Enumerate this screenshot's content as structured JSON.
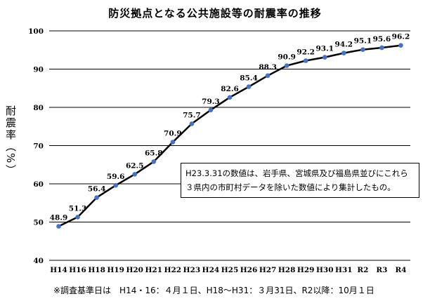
{
  "chart_data": {
    "type": "line",
    "title": "防災拠点となる公共施設等の耐震率の推移",
    "ylabel": "耐震率（%）",
    "xlabel": "",
    "categories": [
      "H14",
      "H16",
      "H18",
      "H19",
      "H20",
      "H21",
      "H22",
      "H23",
      "H24",
      "H25",
      "H26",
      "H27",
      "H28",
      "H29",
      "H30",
      "H31",
      "R2",
      "R3",
      "R4"
    ],
    "series": [
      {
        "values": [
          48.9,
          51.3,
          56.4,
          59.6,
          62.5,
          65.8,
          70.9,
          75.7,
          79.3,
          82.6,
          85.4,
          88.3,
          90.9,
          92.2,
          93.1,
          94.2,
          95.1,
          95.6,
          96.2
        ]
      }
    ],
    "data_labels": [
      "48.9",
      "51.3",
      "56.4",
      "59.6",
      "62.5",
      "65.8",
      "70.9",
      "75.7",
      "79.3",
      "82.6",
      "85.4",
      "88.3",
      "90.9",
      "92.2",
      "93.1",
      "94.2",
      "95.1",
      "95.6",
      "96.2"
    ],
    "ylim": [
      40,
      100
    ],
    "yticks": [
      40,
      50,
      60,
      70,
      80,
      90,
      100
    ],
    "grid": true,
    "line_color": "#000000",
    "marker_color": "#4472c4",
    "annotation": "H23.3.31の数値は、岩手県、宮城県及び福島県並びにこれら３県内の市町村データを除いた数値により集計したもの。",
    "footnote": "※調査基準日は　H14・16：４月１日、H18〜H31：３月31日、R2以降：10月１日"
  }
}
